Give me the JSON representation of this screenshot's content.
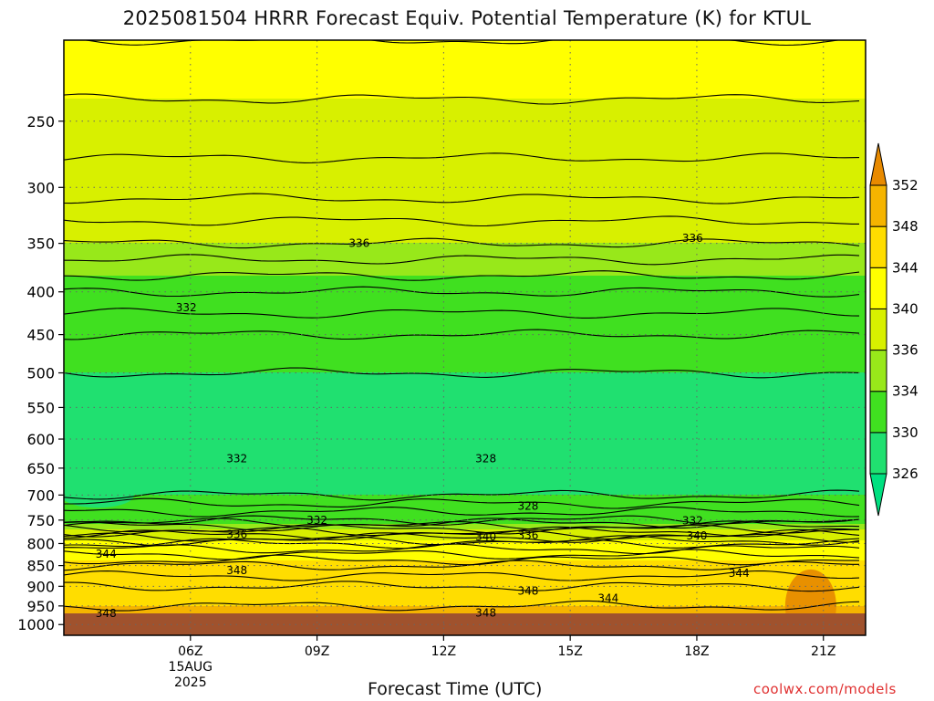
{
  "title": "2025081504 HRRR Forecast Equiv. Potential Temperature (K) for KTUL",
  "watermark": "coolwx.com/models",
  "chart_data": {
    "type": "heatmap",
    "title": "2025081504 HRRR Forecast Equiv. Potential Temperature (K) for KTUL",
    "xlabel": "Forecast Time (UTC)",
    "ylabel": "",
    "x_hours": [
      3,
      22
    ],
    "x_ticks": [
      {
        "hour": 6,
        "label": "06Z",
        "sub": [
          "15AUG",
          "2025"
        ]
      },
      {
        "hour": 9,
        "label": "09Z"
      },
      {
        "hour": 12,
        "label": "12Z"
      },
      {
        "hour": 15,
        "label": "15Z"
      },
      {
        "hour": 18,
        "label": "18Z"
      },
      {
        "hour": 21,
        "label": "21Z"
      }
    ],
    "y_ticks": [
      250,
      300,
      350,
      400,
      450,
      500,
      550,
      600,
      650,
      700,
      750,
      800,
      850,
      900,
      950,
      1000
    ],
    "y_range_hpa": [
      200,
      1030
    ],
    "surface_hpa": 990,
    "colorbar": {
      "levels": [
        326,
        330,
        334,
        336,
        340,
        344,
        348,
        352
      ],
      "colors": [
        "#20e070",
        "#40e020",
        "#98e81a",
        "#d8f000",
        "#ffff00",
        "#ffdd00",
        "#f5b400",
        "#e89000"
      ],
      "below_color": "#00e080",
      "above_color": "#e88a00"
    },
    "profile": [
      {
        "p": 200,
        "theta": 341
      },
      {
        "p": 300,
        "theta": 338.5
      },
      {
        "p": 350,
        "theta": 336
      },
      {
        "p": 400,
        "theta": 333
      },
      {
        "p": 450,
        "theta": 331
      },
      {
        "p": 500,
        "theta": 330
      },
      {
        "p": 600,
        "theta": 329.5
      },
      {
        "p": 650,
        "theta": 329
      },
      {
        "p": 700,
        "theta": 330
      },
      {
        "p": 750,
        "theta": 333
      },
      {
        "p": 800,
        "theta": 341
      },
      {
        "p": 850,
        "theta": 345
      },
      {
        "p": 900,
        "theta": 347
      },
      {
        "p": 950,
        "theta": 348
      },
      {
        "p": 990,
        "theta": 348
      }
    ],
    "contour_labels": [
      {
        "text": "336",
        "hour": 10.0,
        "p": 350
      },
      {
        "text": "336",
        "hour": 17.9,
        "p": 345
      },
      {
        "text": "332",
        "hour": 5.9,
        "p": 418
      },
      {
        "text": "332",
        "hour": 7.1,
        "p": 633
      },
      {
        "text": "328",
        "hour": 13.0,
        "p": 633
      },
      {
        "text": "328",
        "hour": 14.0,
        "p": 722
      },
      {
        "text": "332",
        "hour": 9.0,
        "p": 750
      },
      {
        "text": "332",
        "hour": 17.9,
        "p": 751
      },
      {
        "text": "336",
        "hour": 7.1,
        "p": 780
      },
      {
        "text": "336",
        "hour": 14.0,
        "p": 782
      },
      {
        "text": "340",
        "hour": 13.0,
        "p": 785
      },
      {
        "text": "340",
        "hour": 18.0,
        "p": 783
      },
      {
        "text": "344",
        "hour": 4.0,
        "p": 824
      },
      {
        "text": "344",
        "hour": 19.0,
        "p": 868
      },
      {
        "text": "348",
        "hour": 7.1,
        "p": 862
      },
      {
        "text": "348",
        "hour": 14.0,
        "p": 912
      },
      {
        "text": "344",
        "hour": 15.9,
        "p": 930
      },
      {
        "text": "348",
        "hour": 4.0,
        "p": 970
      },
      {
        "text": "348",
        "hour": 13.0,
        "p": 968
      }
    ]
  }
}
